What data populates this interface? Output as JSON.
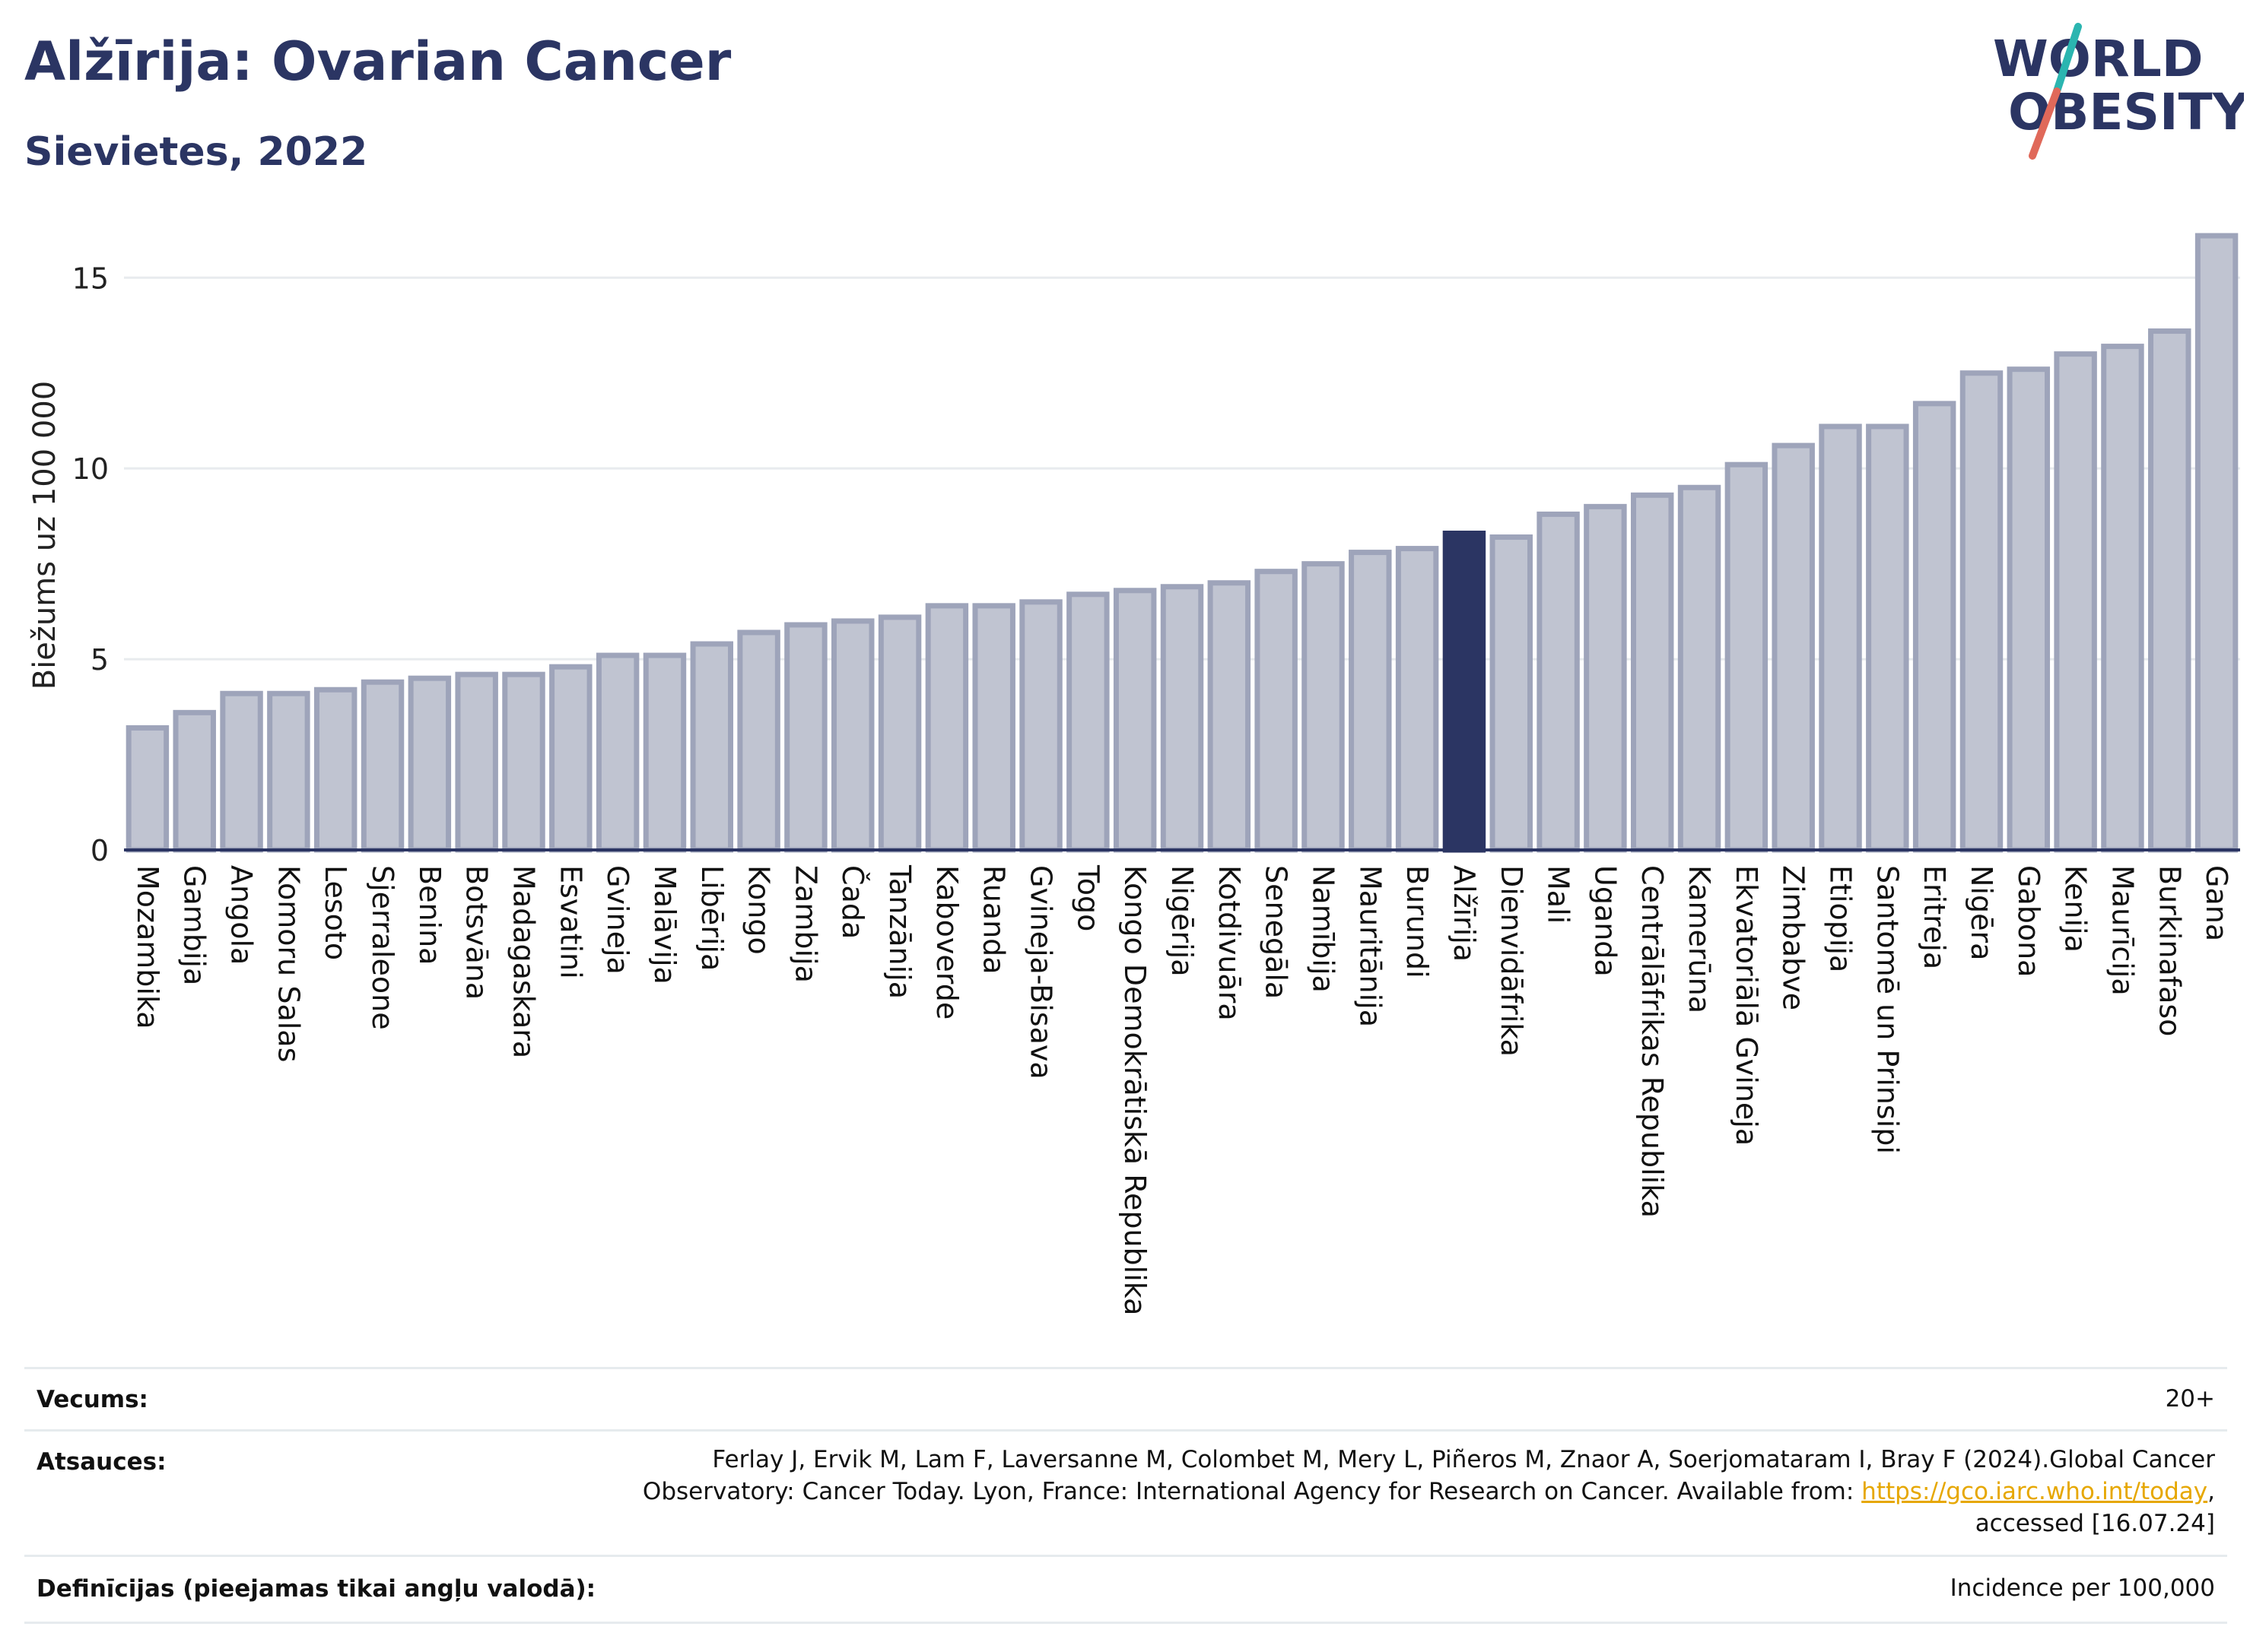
{
  "header": {
    "title": "Alžīrija: Ovarian Cancer",
    "subtitle": "Sievietes, 2022"
  },
  "logo": {
    "line1": "WORLD",
    "line2": "OBESITY",
    "colors": {
      "text": "#2b3563",
      "slash_top": "#2bb5b0",
      "slash_bottom": "#e0695a"
    }
  },
  "chart_data": {
    "type": "bar",
    "ylabel": "Biežums uz 100 000",
    "ylim": [
      0,
      16.5
    ],
    "yticks": [
      0,
      5,
      10,
      15
    ],
    "grid": true,
    "highlight_category": "Alžīrija",
    "colors": {
      "bar": "#c0c4d1",
      "bar_border": "#9ea4ba",
      "highlight": "#2b3563",
      "axis": "#2b3563",
      "grid": "#e8ebee"
    },
    "categories": [
      "Mozambika",
      "Gambija",
      "Angola",
      "Komoru Salas",
      "Lesoto",
      "Sjerraleone",
      "Benina",
      "Botsvāna",
      "Madagaskara",
      "Esvatini",
      "Gvineja",
      "Malāvija",
      "Libērija",
      "Kongo",
      "Zambija",
      "Čada",
      "Tanzānija",
      "Kaboverde",
      "Ruanda",
      "Gvineja-Bisava",
      "Togo",
      "Kongo Demokrātiskā Republika",
      "Nigērija",
      "Kotdivuāra",
      "Senegāla",
      "Namībija",
      "Mauritānija",
      "Burundi",
      "Alžīrija",
      "Dienvidāfrika",
      "Mali",
      "Uganda",
      "Centrālāfrikas Republika",
      "Kamerūna",
      "Ekvatoriālā Gvineja",
      "Zimbabve",
      "Etiopija",
      "Santomē un Prinsipi",
      "Eritreja",
      "Nigēra",
      "Gabona",
      "Kenija",
      "Maurīcija",
      "Burkinafaso",
      "Gana"
    ],
    "values": [
      3.2,
      3.6,
      4.1,
      4.1,
      4.2,
      4.4,
      4.5,
      4.6,
      4.6,
      4.8,
      5.1,
      5.1,
      5.4,
      5.7,
      5.9,
      6.0,
      6.1,
      6.4,
      6.4,
      6.5,
      6.7,
      6.8,
      6.9,
      7.0,
      7.3,
      7.5,
      7.8,
      7.9,
      8.3,
      8.2,
      8.8,
      9.0,
      9.3,
      9.5,
      10.1,
      10.6,
      11.1,
      11.1,
      11.7,
      12.5,
      12.6,
      13.0,
      13.2,
      13.6,
      16.1
    ]
  },
  "footer": {
    "age_label": "Vecums:",
    "age_value": "20+",
    "refs_label": "Atsauces:",
    "refs_text_before": "Ferlay J, Ervik M, Lam F, Laversanne M, Colombet M, Mery L, Piñeros M, Znaor A, Soerjomataram I, Bray F (2024).Global Cancer Observatory: Cancer Today. Lyon, France: International Agency for Research on Cancer. Available from: ",
    "refs_link": "https://gco.iarc.who.int/today",
    "refs_text_after": ", accessed [16.07.24]",
    "defs_label": "Definīcijas (pieejamas tikai angļu valodā):",
    "defs_value": "Incidence per 100,000"
  }
}
